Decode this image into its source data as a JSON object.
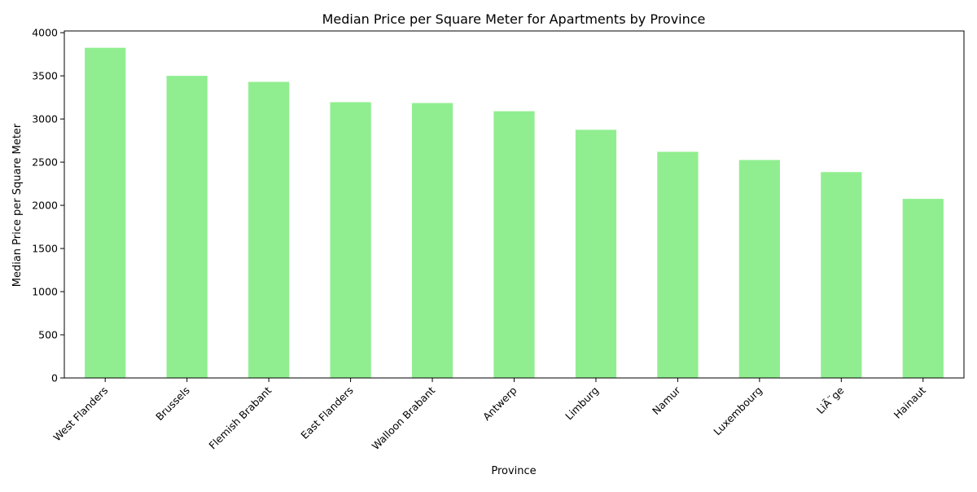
{
  "chart_data": {
    "type": "bar",
    "title": "Median Price per Square Meter for Apartments by Province",
    "xlabel": "Province",
    "ylabel": "Median Price per Square Meter",
    "categories": [
      "West Flanders",
      "Brussels",
      "Flemish Brabant",
      "East Flanders",
      "Walloon Brabant",
      "Antwerp",
      "Limburg",
      "Namur",
      "Luxembourg",
      "LiÃ¨ge",
      "Hainaut"
    ],
    "values": [
      3825,
      3500,
      3430,
      3195,
      3185,
      3090,
      2875,
      2620,
      2525,
      2385,
      2075
    ],
    "ylim": [
      0,
      4020
    ],
    "yticks": [
      0,
      500,
      1000,
      1500,
      2000,
      2500,
      3000,
      3500,
      4000
    ],
    "grid": false,
    "legend": "none",
    "bar_color": "#90ee90",
    "spine_color": "#000000"
  }
}
